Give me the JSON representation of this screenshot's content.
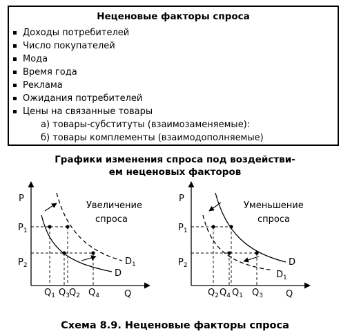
{
  "box": {
    "title": "Неценовые факторы спроса",
    "items": [
      "Доходы потребителей",
      "Число покупателей",
      "Мода",
      "Время года",
      "Реклама",
      "Ожидания потребителей",
      "Цены на связанные товары"
    ],
    "sub_items": [
      "а) товары-субституты (взаимозаменяемые):",
      "б) товары комплементы (взаимодополняемые)"
    ]
  },
  "charts_title": {
    "line1": "Графики изменения спроса под воздействи-",
    "line2": "ем неценовых факторов"
  },
  "left_chart": {
    "axis_y": "P",
    "axis_x": "Q",
    "label_line1": "Увеличение",
    "label_line2": "спроса",
    "p1": "P",
    "p1_sub": "1",
    "p2": "P",
    "p2_sub": "2",
    "q_ticks": [
      {
        "main": "Q",
        "sub": "1"
      },
      {
        "main": "Q",
        "sub": "3"
      },
      {
        "main": "Q",
        "sub": "2"
      },
      {
        "main": "Q",
        "sub": "4"
      }
    ],
    "curve_d": "D",
    "curve_d1": "D",
    "curve_d1_sub": "1"
  },
  "right_chart": {
    "axis_y": "P",
    "axis_x": "Q",
    "label_line1": "Уменьшение",
    "label_line2": "спроса",
    "p1": "P",
    "p1_sub": "1",
    "p2": "P",
    "p2_sub": "2",
    "q_ticks": [
      {
        "main": "Q",
        "sub": "2"
      },
      {
        "main": "Q",
        "sub": "4"
      },
      {
        "main": "Q",
        "sub": "1"
      },
      {
        "main": "Q",
        "sub": "3"
      }
    ],
    "curve_d": "D",
    "curve_d1": "D",
    "curve_d1_sub": "1"
  },
  "caption": "Схема 8.9. Неценовые факторы спроса"
}
